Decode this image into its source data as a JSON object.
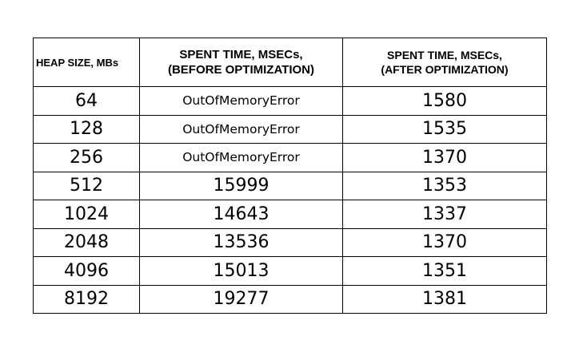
{
  "table": {
    "headers": [
      [
        "HEAP SIZE, MBs"
      ],
      [
        "SPENT TIME, MSECs,",
        "(BEFORE OPTIMIZATION)"
      ],
      [
        "SPENT TIME, MSECs,",
        "(AFTER OPTIMIZATION)"
      ]
    ],
    "rows": [
      [
        "64",
        "OutOfMemoryError",
        "1580"
      ],
      [
        "128",
        "OutOfMemoryError",
        "1535"
      ],
      [
        "256",
        "OutOfMemoryError",
        "1370"
      ],
      [
        "512",
        "15999",
        "1353"
      ],
      [
        "1024",
        "14643",
        "1337"
      ],
      [
        "2048",
        "13536",
        "1370"
      ],
      [
        "4096",
        "15013",
        "1351"
      ],
      [
        "8192",
        "19277",
        "1381"
      ]
    ]
  }
}
